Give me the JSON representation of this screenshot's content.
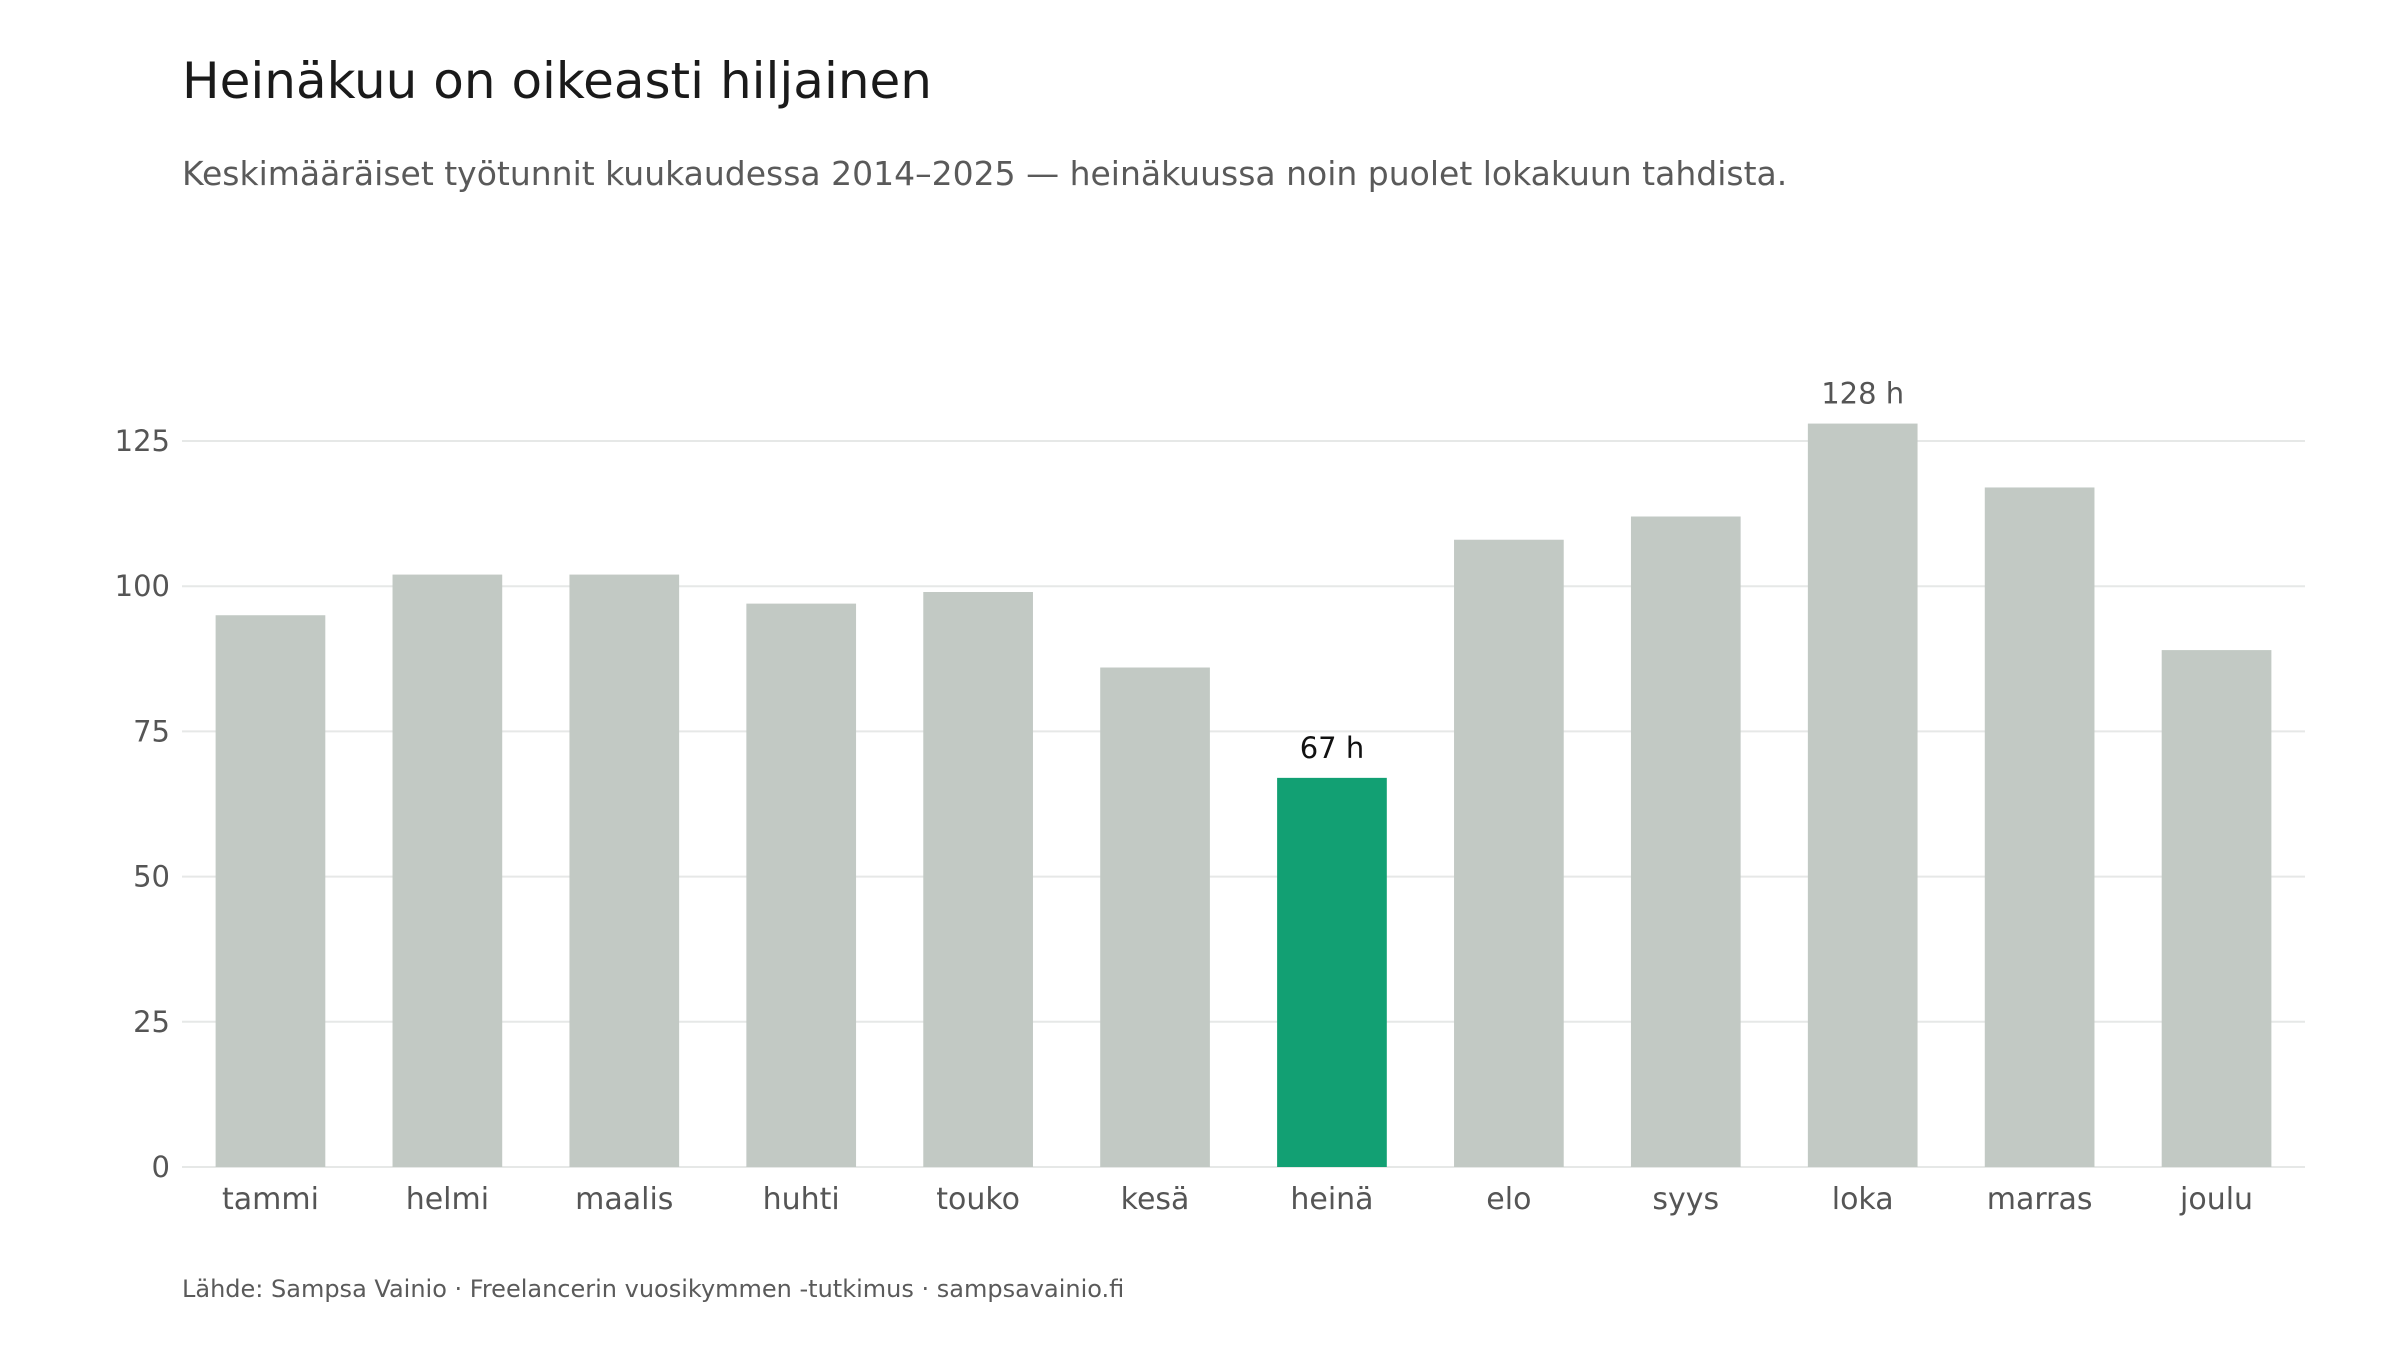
{
  "title": "Heinäkuu on oikeasti hiljainen",
  "subtitle": "Keskimääräiset työtunnit kuukaudessa 2014–2025 — heinäkuussa noin puolet lokakuun tahdista.",
  "caption": "Lähde: Sampsa Vainio · Freelancerin vuosikymmen -tutkimus · sampsavainio.fi",
  "chart_data": {
    "type": "bar",
    "title": "Heinäkuu on oikeasti hiljainen",
    "subtitle": "Keskimääräiset työtunnit kuukaudessa 2014–2025 — heinäkuussa noin puolet lokakuun tahdista.",
    "xlabel": "",
    "ylabel": "",
    "categories": [
      "tammi",
      "helmi",
      "maalis",
      "huhti",
      "touko",
      "kesä",
      "heinä",
      "elo",
      "syys",
      "loka",
      "marras",
      "joulu"
    ],
    "values": [
      95,
      102,
      102,
      97,
      99,
      86,
      67,
      108,
      112,
      128,
      117,
      89
    ],
    "ylim": [
      0,
      135
    ],
    "yticks": [
      0,
      25,
      50,
      75,
      100,
      125
    ],
    "grid": true,
    "legend": "none",
    "highlight_index": 6,
    "data_labels": [
      {
        "index": 6,
        "text": "67 h"
      },
      {
        "index": 9,
        "text": "128 h"
      }
    ],
    "colors": {
      "bar": "#c2c9c4",
      "highlight": "#12a073",
      "grid": "#e6e8e7",
      "label_highlight": "#111111",
      "label_default": "#555555"
    }
  }
}
